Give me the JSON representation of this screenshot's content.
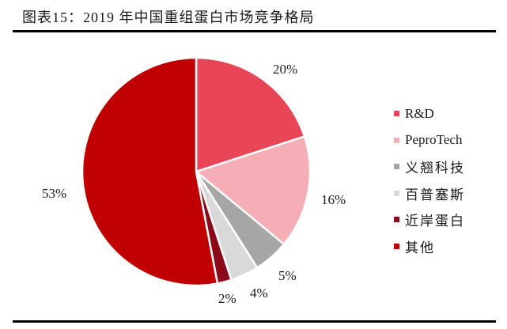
{
  "title": "图表15：2019 年中国重组蛋白市场竞争格局",
  "chart_data": {
    "type": "pie",
    "title": "图表15：2019 年中国重组蛋白市场竞争格局",
    "start_angle_deg": 0,
    "direction": "clockwise",
    "legend_position": "right",
    "categories": [
      "R&D",
      "PeproTech",
      "义翘科技",
      "百普塞斯",
      "近岸蛋白",
      "其他"
    ],
    "values": [
      20,
      16,
      5,
      4,
      2,
      53
    ],
    "labels": [
      "20%",
      "16%",
      "5%",
      "4%",
      "2%",
      "53%"
    ],
    "colors": [
      "#E84656",
      "#F5AEB6",
      "#A6A6A6",
      "#D9D9D9",
      "#8B0A1A",
      "#C00000"
    ]
  },
  "legend": [
    {
      "label": "R&D",
      "color": "#E84656"
    },
    {
      "label": "PeproTech",
      "color": "#F5AEB6"
    },
    {
      "label": "义翘科技",
      "color": "#A6A6A6"
    },
    {
      "label": "百普塞斯",
      "color": "#D9D9D9"
    },
    {
      "label": "近岸蛋白",
      "color": "#8B0A1A"
    },
    {
      "label": "其他",
      "color": "#C00000"
    }
  ],
  "slice_labels": {
    "rd": "20%",
    "peprotech": "16%",
    "yiqiao": "5%",
    "baipu": "4%",
    "jinan": "2%",
    "other": "53%"
  }
}
